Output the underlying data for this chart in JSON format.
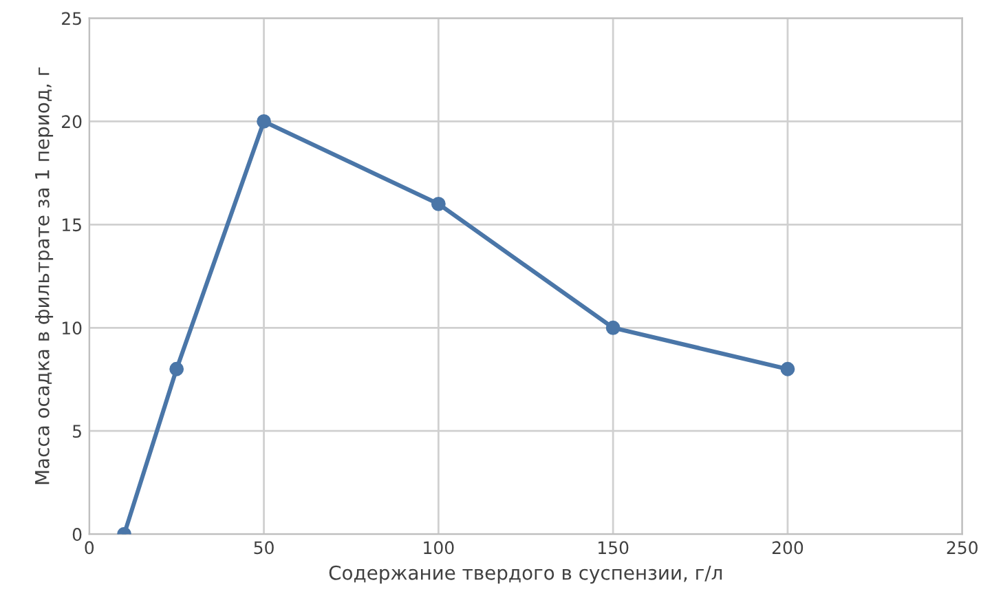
{
  "chart_data": {
    "type": "line",
    "xlabel": "Содержание твердого в суспензии, г/л",
    "ylabel": "Масса осадка в фильтрате за 1 период, г",
    "x": [
      10,
      25,
      50,
      100,
      150,
      200
    ],
    "series": [
      {
        "color": "#4a76a8",
        "values": [
          0,
          8,
          20,
          16,
          10,
          8
        ]
      }
    ],
    "xlim": [
      0,
      250
    ],
    "xticks": [
      0,
      50,
      100,
      150,
      200,
      250
    ],
    "ylim": [
      0,
      25
    ],
    "yticks": [
      0,
      5,
      10,
      15,
      20,
      25
    ],
    "grid": true,
    "marker": "circle",
    "line_style": "solid"
  }
}
